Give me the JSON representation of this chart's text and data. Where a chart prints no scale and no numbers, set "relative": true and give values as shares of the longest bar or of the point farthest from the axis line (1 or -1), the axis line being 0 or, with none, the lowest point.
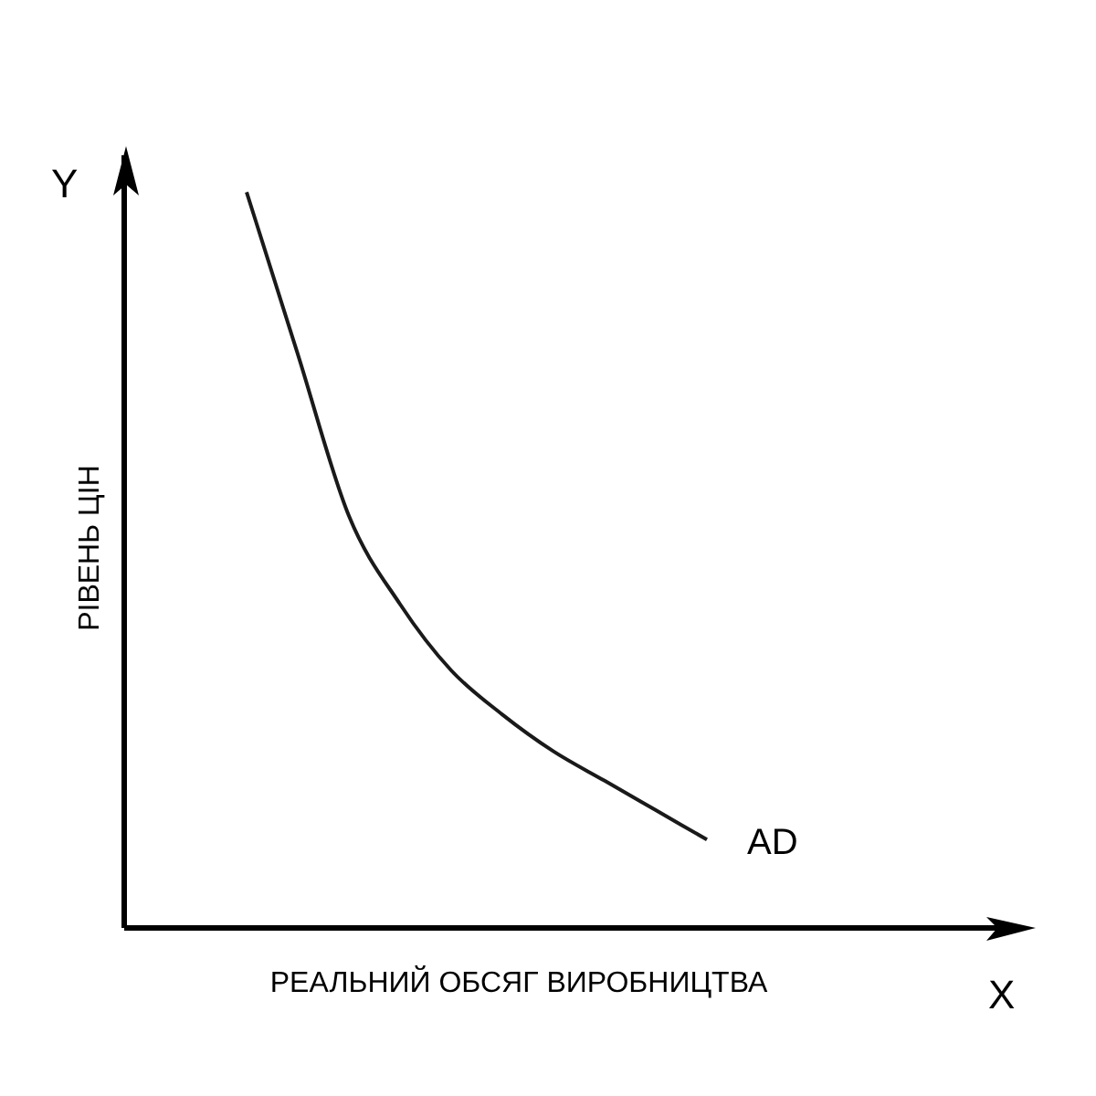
{
  "chart_data": {
    "type": "line",
    "relative": true,
    "xlabel": "РЕАЛЬНИЙ ОБСЯГ ВИРОБНИЦТВА",
    "ylabel": "РІВЕНЬ ЦІН",
    "annotations": [
      "Y",
      "X"
    ],
    "marker": "none",
    "categories": [
      null,
      null,
      null,
      null,
      null,
      null,
      null,
      null,
      null,
      null
    ],
    "series": [
      {
        "name": "AD",
        "color": "#1a1a1a",
        "values": [
          1,
          0.78,
          0.56,
          0.44,
          0.35,
          0.29,
          0.24,
          0.2,
          0.16,
          0.12
        ]
      }
    ]
  }
}
